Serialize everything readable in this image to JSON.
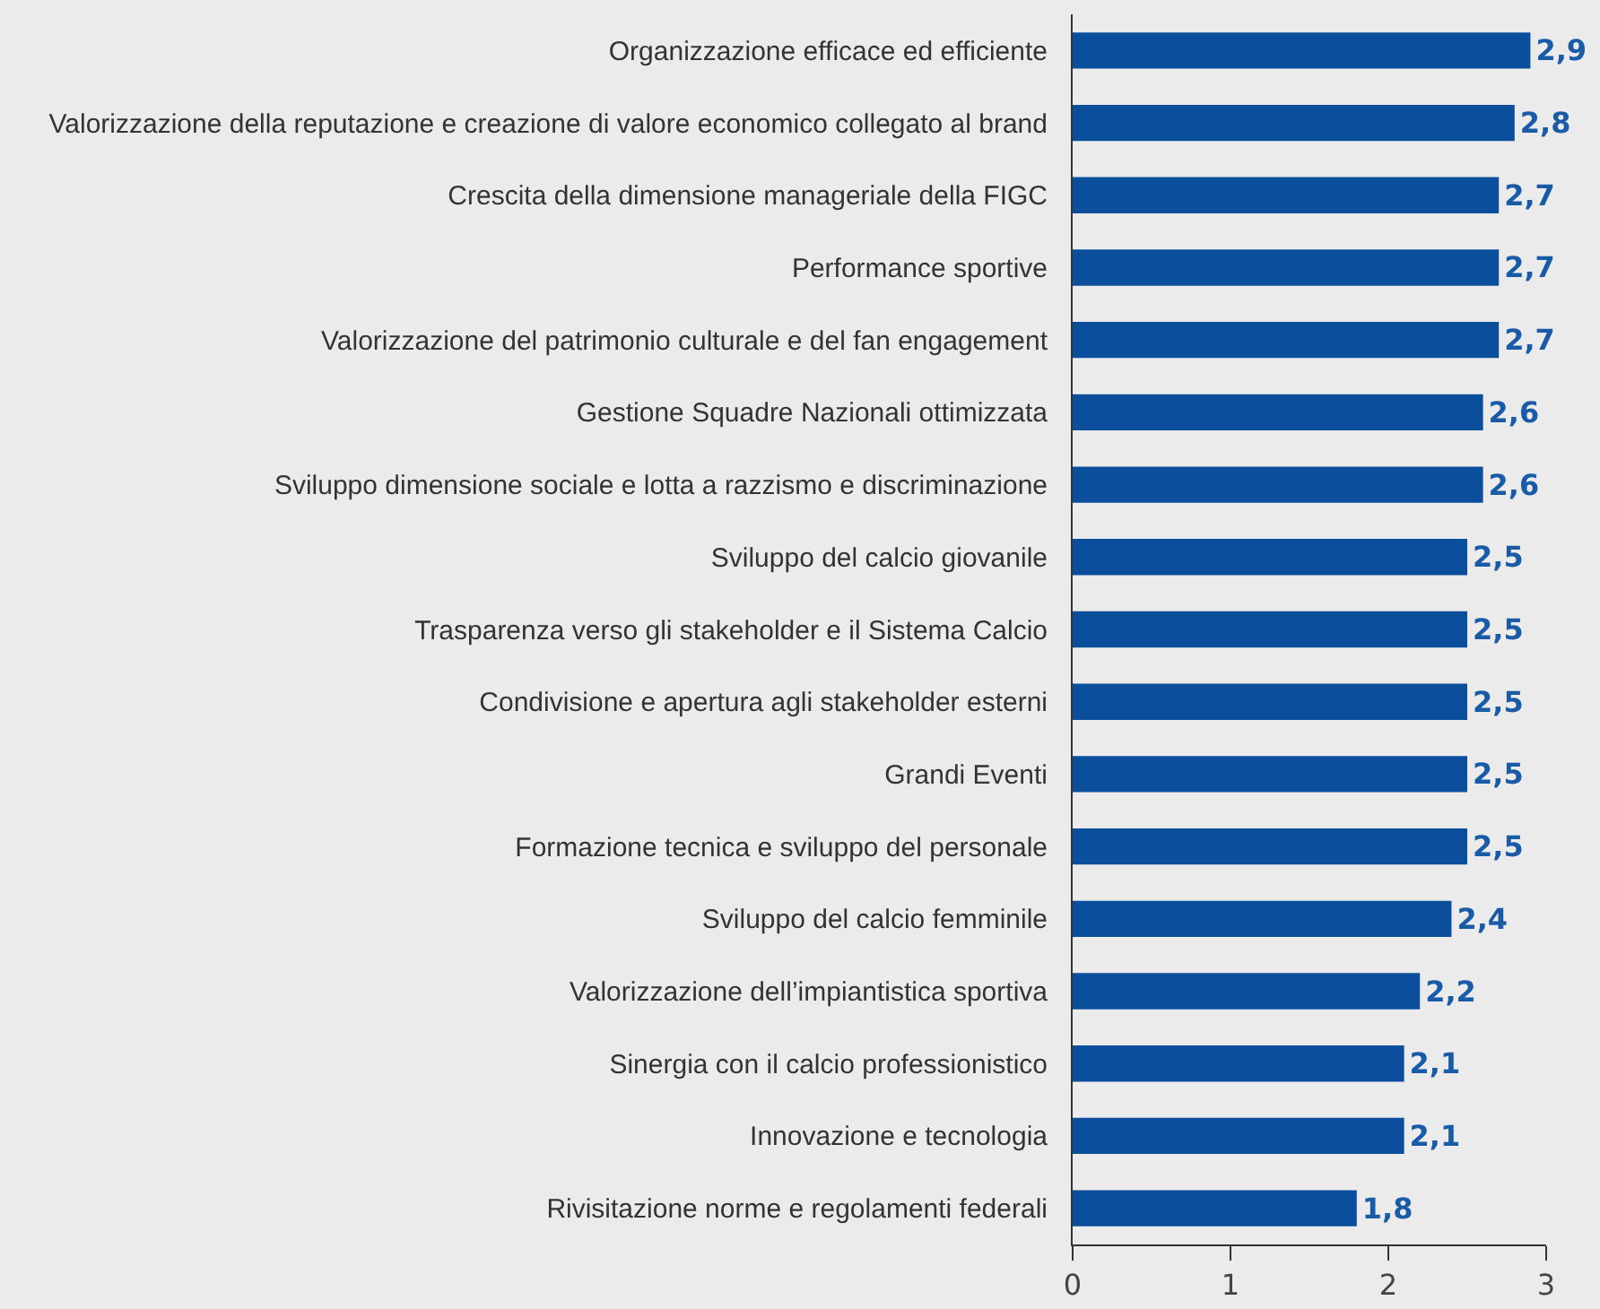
{
  "chart_data": {
    "type": "bar",
    "orientation": "horizontal",
    "categories": [
      "Organizzazione efficace ed efficiente",
      "Valorizzazione della reputazione e creazione di valore economico collegato al brand",
      "Crescita della dimensione manageriale della FIGC",
      "Performance sportive",
      "Valorizzazione del patrimonio culturale e del fan engagement",
      "Gestione Squadre Nazionali ottimizzata",
      "Sviluppo dimensione sociale e lotta a razzismo e discriminazione",
      "Sviluppo del calcio giovanile",
      "Trasparenza verso gli stakeholder e il Sistema Calcio",
      "Condivisione e apertura agli stakeholder esterni",
      "Grandi Eventi",
      "Formazione tecnica e sviluppo del personale",
      "Sviluppo del calcio femminile",
      "Valorizzazione dell’impiantistica sportiva",
      "Sinergia con il calcio professionistico",
      "Innovazione e tecnologia",
      "Rivisitazione norme e regolamenti federali"
    ],
    "values": [
      2.9,
      2.8,
      2.7,
      2.7,
      2.7,
      2.6,
      2.6,
      2.5,
      2.5,
      2.5,
      2.5,
      2.5,
      2.4,
      2.2,
      2.1,
      2.1,
      1.8
    ],
    "value_labels": [
      "2,9",
      "2,8",
      "2,7",
      "2,7",
      "2,7",
      "2,6",
      "2,6",
      "2,5",
      "2,5",
      "2,5",
      "2,5",
      "2,5",
      "2,4",
      "2,2",
      "2,1",
      "2,1",
      "1,8"
    ],
    "color": "#0b4f9c",
    "xlim": [
      0,
      3
    ],
    "xticks": [
      0,
      1,
      2,
      3
    ],
    "grid": false
  }
}
